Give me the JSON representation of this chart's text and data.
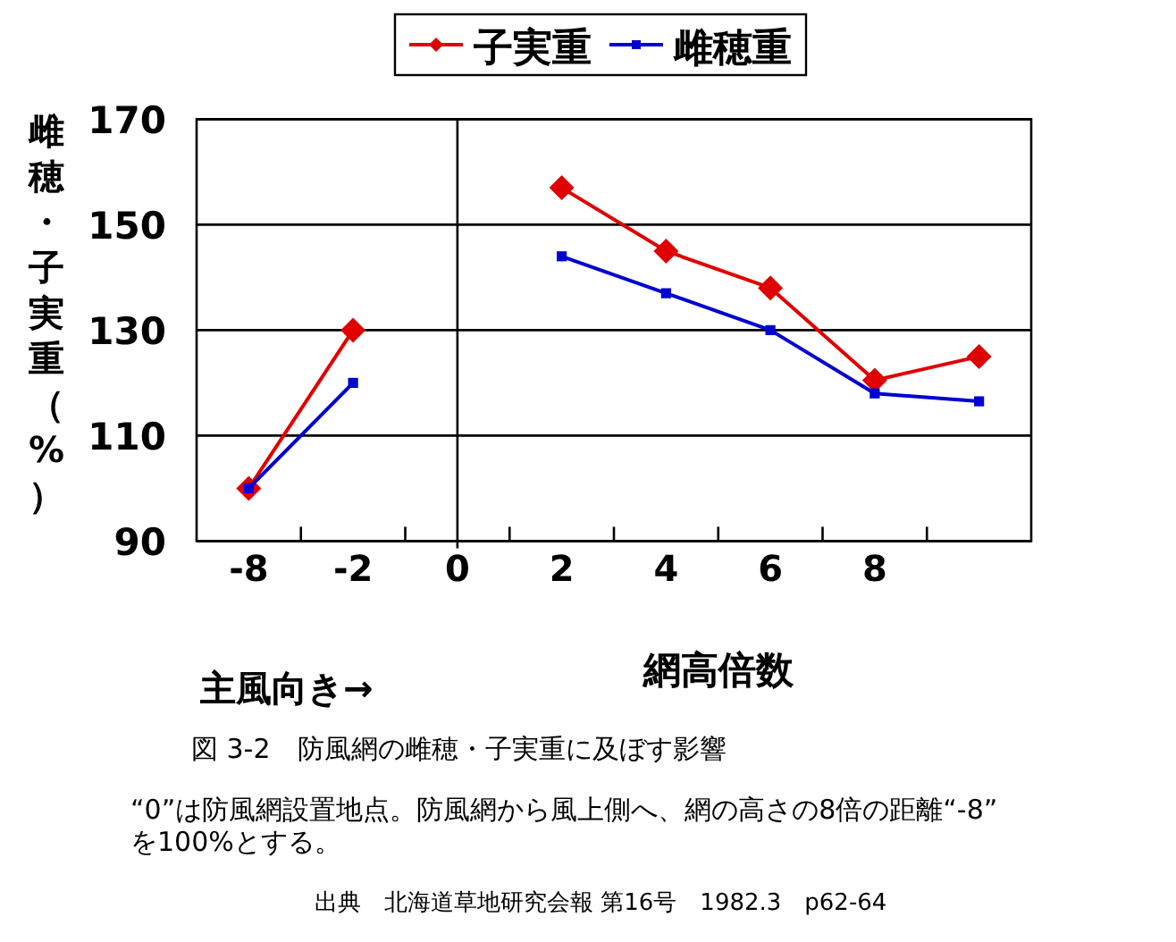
{
  "chart_data": {
    "type": "line",
    "title": "図 3-2　防風網の雌穂・子実重に及ぼす影響",
    "xlabel": "網高倍数",
    "ylabel": "雌穂・子実重（%）",
    "categories": [
      "-8",
      "-2",
      "0",
      "2",
      "4",
      "6",
      "8",
      null
    ],
    "series": [
      {
        "name": "子実重",
        "color": "#e00000",
        "marker": "diamond",
        "values": [
          100,
          130,
          null,
          157,
          145,
          138,
          120.5,
          125
        ]
      },
      {
        "name": "雌穂重",
        "color": "#0000d0",
        "marker": "square",
        "values": [
          100,
          120,
          null,
          144,
          137,
          130,
          118,
          116.5
        ]
      }
    ],
    "ylim": [
      90,
      170
    ],
    "yticks": [
      90,
      110,
      130,
      150,
      170
    ],
    "grid": "y",
    "legend": "top",
    "ref_lines": [
      {
        "axis": "x",
        "value": "0"
      }
    ],
    "annotations": [
      "主風向き→",
      "“0”は防風網設置地点。防風網から風上側へ、網の高さの8倍の距離“-8”を100%とする。",
      "出典　北海道草地研究会報 第16号　1982.3　p62-64"
    ]
  }
}
